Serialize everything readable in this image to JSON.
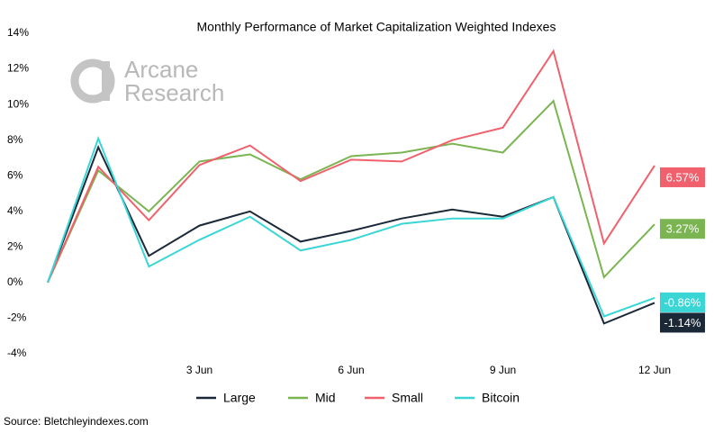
{
  "chart_data": {
    "type": "line",
    "title": "Monthly Performance of Market Capitalization Weighted Indexes",
    "watermark": [
      "Arcane",
      "Research"
    ],
    "source": "Source: Bletchleyindexes.com",
    "categories": [
      null,
      null,
      null,
      "3 Jun",
      null,
      null,
      "6 Jun",
      null,
      null,
      "9 Jun",
      null,
      null,
      "12 Jun"
    ],
    "ylim": [
      -4,
      14
    ],
    "yticks": [
      {
        "value": -4,
        "label": "-4%"
      },
      {
        "value": -2,
        "label": "-2%"
      },
      {
        "value": 0,
        "label": "0%"
      },
      {
        "value": 2,
        "label": "2%"
      },
      {
        "value": 4,
        "label": "4%"
      },
      {
        "value": 6,
        "label": "6%"
      },
      {
        "value": 8,
        "label": "8%"
      },
      {
        "value": 10,
        "label": "10%"
      },
      {
        "value": 12,
        "label": "12%"
      },
      {
        "value": 14,
        "label": "14%"
      }
    ],
    "grid": false,
    "legend": "bottom",
    "series": [
      {
        "name": "Large",
        "color": "#1b2838",
        "values": [
          0,
          7.6,
          1.5,
          3.2,
          4.0,
          2.3,
          2.9,
          3.6,
          4.1,
          3.7,
          4.8,
          -2.3,
          -1.14
        ],
        "value_labels": [
          null,
          null,
          null,
          null,
          null,
          null,
          null,
          null,
          null,
          null,
          null,
          null,
          "-1.14%"
        ]
      },
      {
        "name": "Mid",
        "color": "#7ab552",
        "values": [
          0,
          6.3,
          4.0,
          6.8,
          7.2,
          5.8,
          7.1,
          7.3,
          7.8,
          7.3,
          10.2,
          0.3,
          3.27
        ],
        "value_labels": [
          null,
          null,
          null,
          null,
          null,
          null,
          null,
          null,
          null,
          null,
          null,
          null,
          "3.27%"
        ]
      },
      {
        "name": "Small",
        "color": "#f0616d",
        "values": [
          0,
          6.5,
          3.5,
          6.6,
          7.7,
          5.7,
          6.9,
          6.8,
          8.0,
          8.7,
          13.0,
          2.2,
          6.57
        ],
        "value_labels": [
          null,
          null,
          null,
          null,
          null,
          null,
          null,
          null,
          null,
          null,
          null,
          null,
          "6.57%"
        ]
      },
      {
        "name": "Bitcoin",
        "color": "#3ad6d6",
        "values": [
          0,
          8.1,
          0.9,
          2.4,
          3.7,
          1.8,
          2.4,
          3.3,
          3.6,
          3.6,
          4.8,
          -1.9,
          -0.86
        ],
        "value_labels": [
          null,
          null,
          null,
          null,
          null,
          null,
          null,
          null,
          null,
          null,
          null,
          null,
          "-0.86%"
        ]
      }
    ]
  }
}
